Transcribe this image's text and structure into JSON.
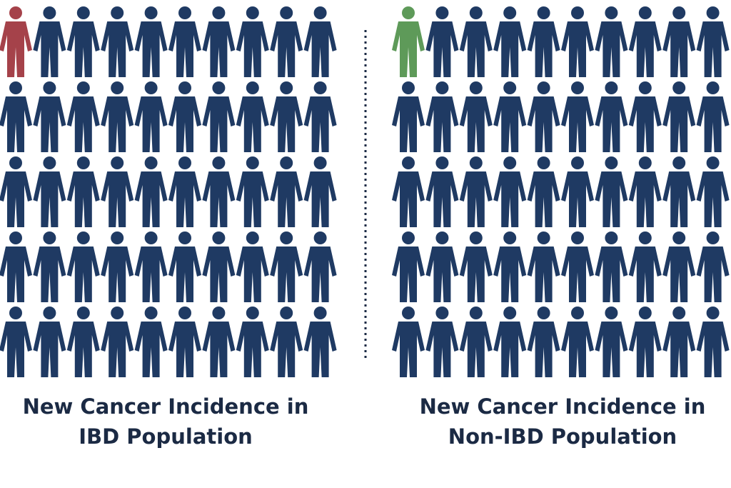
{
  "chart_data": {
    "type": "pictograph",
    "panels": [
      {
        "caption_line1": "New Cancer Incidence in",
        "caption_line2": "IBD Population",
        "rows": 5,
        "cols": 10,
        "total": 50,
        "highlighted": 1,
        "highlight_color": "#a5424a"
      },
      {
        "caption_line1": "New Cancer Incidence in",
        "caption_line2": "Non-IBD Population",
        "rows": 5,
        "cols": 10,
        "total": 50,
        "highlighted": 1,
        "highlight_color": "#5e9a59"
      }
    ],
    "base_color": "#1f3a63",
    "divider": "dotted-vertical"
  }
}
